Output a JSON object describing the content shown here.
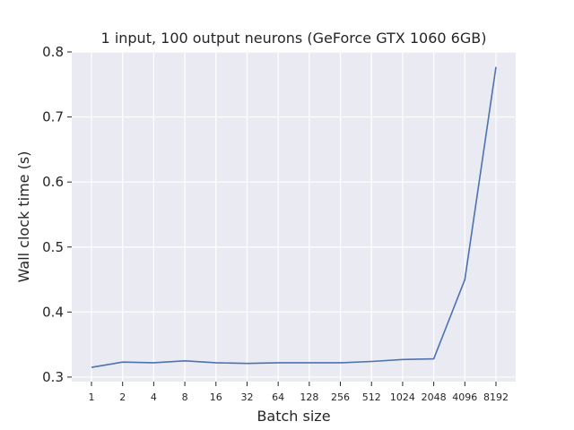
{
  "chart_data": {
    "type": "line",
    "title": "1 input, 100 output neurons (GeForce GTX 1060 6GB)",
    "xlabel": "Batch size",
    "ylabel": "Wall clock time (s)",
    "categories": [
      "1",
      "2",
      "4",
      "8",
      "16",
      "32",
      "64",
      "128",
      "256",
      "512",
      "1024",
      "2048",
      "4096",
      "8192"
    ],
    "series": [
      {
        "values": [
          0.315,
          0.323,
          0.322,
          0.325,
          0.322,
          0.321,
          0.322,
          0.322,
          0.322,
          0.324,
          0.327,
          0.328,
          0.45,
          0.777
        ]
      }
    ],
    "yticks": [
      "0.3",
      "0.4",
      "0.5",
      "0.6",
      "0.7",
      "0.8"
    ],
    "ytick_values": [
      0.3,
      0.4,
      0.5,
      0.6,
      0.7,
      0.8
    ],
    "ylim": [
      0.293,
      0.8
    ],
    "grid": true,
    "colors": {
      "plot_background": "#eaeaf2",
      "line": "#4c72b0",
      "grid": "#ffffff"
    }
  }
}
